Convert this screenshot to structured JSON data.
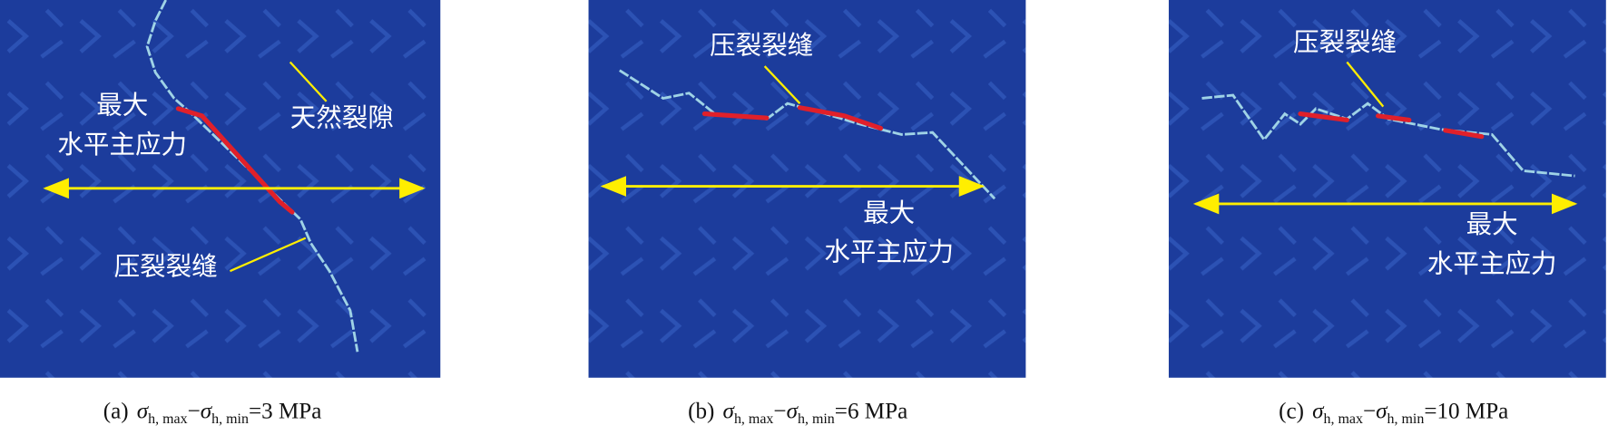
{
  "panels": [
    {
      "caption": {
        "label": "(a)",
        "symbol": "σ",
        "sub_max": "h, max",
        "minus": "−",
        "sub_min": "h, min",
        "value": "=3 MPa"
      },
      "annotations": [
        {
          "lines": [
            "最大",
            "水平主应力"
          ]
        },
        {
          "lines": [
            "天然裂隙"
          ]
        },
        {
          "lines": [
            "压裂裂缝"
          ]
        }
      ]
    },
    {
      "caption": {
        "label": "(b)",
        "symbol": "σ",
        "sub_max": "h, max",
        "minus": "−",
        "sub_min": "h, min",
        "value": "=6 MPa"
      },
      "annotations": [
        {
          "lines": [
            "压裂裂缝"
          ]
        },
        {
          "lines": [
            "最大",
            "水平主应力"
          ]
        }
      ]
    },
    {
      "caption": {
        "label": "(c)",
        "symbol": "σ",
        "sub_max": "h, max",
        "minus": "−",
        "sub_min": "h, min",
        "value": "=10 MPa"
      },
      "annotations": [
        {
          "lines": [
            "压裂裂缝"
          ]
        },
        {
          "lines": [
            "最大",
            "水平主应力"
          ]
        }
      ]
    }
  ]
}
